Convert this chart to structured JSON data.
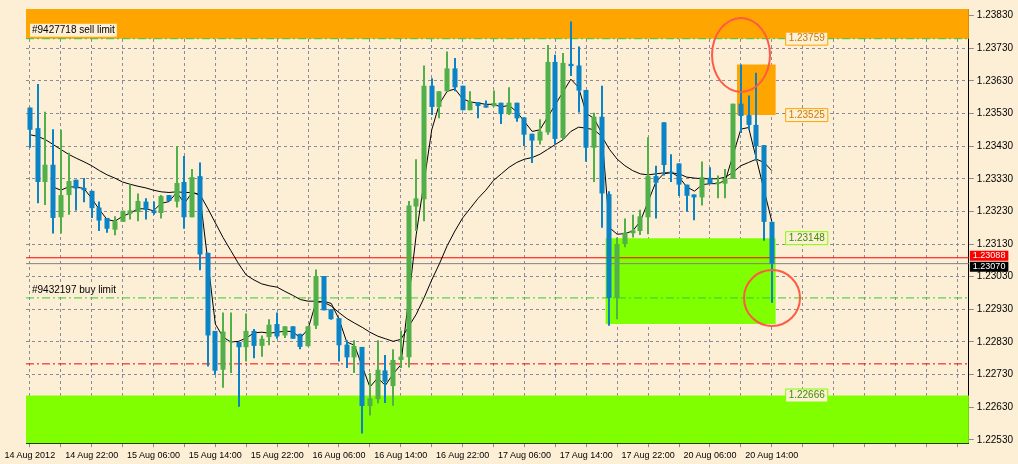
{
  "chart_data": {
    "type": "candlestick",
    "categories": [
      "14 Aug 2012",
      null,
      null,
      null,
      null,
      null,
      null,
      null,
      "14 Aug 22:00",
      null,
      null,
      null,
      null,
      null,
      null,
      null,
      "15 Aug 06:00",
      null,
      null,
      null,
      null,
      null,
      null,
      null,
      "15 Aug 14:00",
      null,
      null,
      null,
      null,
      null,
      null,
      null,
      "15 Aug 22:00",
      null,
      null,
      null,
      null,
      null,
      null,
      null,
      "16 Aug 06:00",
      null,
      null,
      null,
      null,
      null,
      null,
      null,
      "16 Aug 14:00",
      null,
      null,
      null,
      null,
      null,
      null,
      null,
      "16 Aug 22:00",
      null,
      null,
      null,
      null,
      null,
      null,
      null,
      "17 Aug 06:00",
      null,
      null,
      null,
      null,
      null,
      null,
      null,
      "17 Aug 14:00",
      null,
      null,
      null,
      null,
      null,
      null,
      null,
      "17 Aug 22:00",
      null,
      null,
      null,
      null,
      null,
      null,
      null,
      "20 Aug 06:00",
      null,
      null,
      null,
      null,
      null,
      null,
      null,
      "20 Aug 14:00",
      null,
      null,
      null,
      null,
      null,
      null,
      null,
      null,
      null,
      null,
      null,
      null,
      null,
      null,
      null,
      null,
      null,
      null,
      null,
      null,
      null,
      null,
      null,
      null,
      null
    ],
    "ohlc": [
      [
        1.23548,
        1.23548,
        1.23425,
        1.2348
      ],
      [
        1.23485,
        1.2362,
        1.23255,
        1.2332
      ],
      [
        1.2332,
        1.23535,
        1.2325,
        1.23373
      ],
      [
        1.23373,
        1.23482,
        1.23162,
        1.2321
      ],
      [
        1.23212,
        1.2348,
        1.23162,
        1.2328
      ],
      [
        1.2328,
        1.2341,
        1.2322,
        1.23323
      ],
      [
        1.23327,
        1.23327,
        1.23233,
        1.233
      ],
      [
        1.23302,
        1.23332,
        1.23258,
        1.23295
      ],
      [
        1.23293,
        1.23293,
        1.2321,
        1.2324
      ],
      [
        1.23242,
        1.2326,
        1.2317,
        1.23202
      ],
      [
        1.2321,
        1.2321,
        1.23165,
        1.23177
      ],
      [
        1.23174,
        1.23215,
        1.23157,
        1.232
      ],
      [
        1.23198,
        1.23232,
        1.23198,
        1.23232
      ],
      [
        1.23223,
        1.23312,
        1.23205,
        1.23233
      ],
      [
        1.23228,
        1.23285,
        1.232,
        1.23262
      ],
      [
        1.2326,
        1.2327,
        1.23205,
        1.23235
      ],
      [
        1.23233,
        1.2326,
        1.2322,
        1.23225
      ],
      [
        1.23225,
        1.2328,
        1.23208,
        1.23277
      ],
      [
        1.2328,
        1.2328,
        1.2326,
        1.23262
      ],
      [
        1.2326,
        1.2343,
        1.23242,
        1.23317
      ],
      [
        1.2332,
        1.234,
        1.23177,
        1.23212
      ],
      [
        1.23212,
        1.2336,
        1.23212,
        1.23335
      ],
      [
        1.23338,
        1.2338,
        1.2305,
        1.23098
      ],
      [
        1.23103,
        1.23103,
        1.22755,
        1.2285
      ],
      [
        1.22864,
        1.22864,
        1.2273,
        1.22742
      ],
      [
        1.22745,
        1.2292,
        1.2269,
        1.22862
      ],
      [
        1.2283,
        1.2292,
        1.22735,
        1.22832
      ],
      [
        1.2283,
        1.2283,
        1.22632,
        1.22814
      ],
      [
        1.22814,
        1.22917,
        1.2277,
        1.22864
      ],
      [
        1.22864,
        1.2287,
        1.2278,
        1.22818
      ],
      [
        1.22818,
        1.2285,
        1.22785,
        1.2284
      ],
      [
        1.22845,
        1.229,
        1.2282,
        1.22883
      ],
      [
        1.22885,
        1.2292,
        1.2284,
        1.22847
      ],
      [
        1.2285,
        1.22878,
        1.22842,
        1.22878
      ],
      [
        1.22878,
        1.22878,
        1.2284,
        1.2284
      ],
      [
        1.22855,
        1.22855,
        1.22808,
        1.22815
      ],
      [
        1.22817,
        1.22878,
        1.22817,
        1.22878
      ],
      [
        1.2288,
        1.23052,
        1.2287,
        1.23032
      ],
      [
        1.23032,
        1.23032,
        1.22927,
        1.22927
      ],
      [
        1.2293,
        1.2293,
        1.22898,
        1.229
      ],
      [
        1.22903,
        1.22903,
        1.2277,
        1.2282
      ],
      [
        1.22822,
        1.22835,
        1.2275,
        1.22783
      ],
      [
        1.22783,
        1.22835,
        1.22735,
        1.22818
      ],
      [
        1.22815,
        1.22815,
        1.2255,
        1.22634
      ],
      [
        1.22634,
        1.22735,
        1.22605,
        1.22657
      ],
      [
        1.22655,
        1.22835,
        1.22642,
        1.22745
      ],
      [
        1.22743,
        1.2279,
        1.22643,
        1.22708
      ],
      [
        1.22695,
        1.22808,
        1.22635,
        1.22775
      ],
      [
        1.22775,
        1.22865,
        1.2275,
        1.22785
      ],
      [
        1.22783,
        1.23262,
        1.22752,
        1.23248
      ],
      [
        1.23245,
        1.2339,
        1.2317,
        1.2327
      ],
      [
        1.23267,
        1.23677,
        1.232,
        1.23615
      ],
      [
        1.23615,
        1.23638,
        1.23525,
        1.2355
      ],
      [
        1.2355,
        1.23598,
        1.23515,
        1.23598
      ],
      [
        1.23598,
        1.2372,
        1.23598,
        1.23668
      ],
      [
        1.23668,
        1.237,
        1.23598,
        1.2361
      ],
      [
        1.23615,
        1.23615,
        1.2354,
        1.2354
      ],
      [
        1.2354,
        1.23598,
        1.2354,
        1.23567
      ],
      [
        1.23565,
        1.23565,
        1.23515,
        1.23553
      ],
      [
        1.23555,
        1.2357,
        1.23548,
        1.23548
      ],
      [
        1.23552,
        1.236,
        1.23552,
        1.23562
      ],
      [
        1.23563,
        1.23563,
        1.23498,
        1.23528
      ],
      [
        1.23528,
        1.2361,
        1.23525,
        1.23563
      ],
      [
        1.23563,
        1.23563,
        1.23505,
        1.23515
      ],
      [
        1.23518,
        1.23518,
        1.2343,
        1.23465
      ],
      [
        1.23468,
        1.23468,
        1.23378,
        1.23447
      ],
      [
        1.23447,
        1.23512,
        1.23435,
        1.23475
      ],
      [
        1.23472,
        1.2374,
        1.23465,
        1.23688
      ],
      [
        1.23688,
        1.2371,
        1.23435,
        1.23452
      ],
      [
        1.23455,
        1.23715,
        1.23452,
        1.23685
      ],
      [
        1.23682,
        1.23812,
        1.23645,
        1.23675
      ],
      [
        1.23677,
        1.23735,
        1.23533,
        1.236
      ],
      [
        1.23602,
        1.23602,
        1.23382,
        1.23425
      ],
      [
        1.23425,
        1.23532,
        1.2332,
        1.2352
      ],
      [
        1.2352,
        1.23615,
        1.2318,
        1.23285
      ],
      [
        1.23283,
        1.23292,
        1.2288,
        1.22965
      ],
      [
        1.22965,
        1.2315,
        1.229,
        1.2313
      ],
      [
        1.2313,
        1.23208,
        1.2312,
        1.23165
      ],
      [
        1.23163,
        1.2322,
        1.2315,
        1.23172
      ],
      [
        1.2317,
        1.23235,
        1.23158,
        1.23215
      ],
      [
        1.23212,
        1.23457,
        1.2316,
        1.23338
      ],
      [
        1.23338,
        1.2337,
        1.23208,
        1.23318
      ],
      [
        1.23503,
        1.23503,
        1.2334,
        1.23372
      ],
      [
        1.23352,
        1.23405,
        1.2332,
        1.23347
      ],
      [
        1.23377,
        1.23377,
        1.23277,
        1.23312
      ],
      [
        1.23312,
        1.23312,
        1.2323,
        1.23278
      ],
      [
        1.23282,
        1.23282,
        1.23203,
        1.23273
      ],
      [
        1.23273,
        1.23383,
        1.23248,
        1.23335
      ],
      [
        1.23333,
        1.23365,
        1.23315,
        1.23315
      ],
      [
        1.23314,
        1.2334,
        1.2327,
        1.2332
      ],
      [
        1.23315,
        1.2336,
        1.2327,
        1.23332
      ],
      [
        1.2333,
        1.2356,
        1.2333,
        1.2356
      ],
      [
        1.2356,
        1.2368,
        1.2347,
        1.23522
      ],
      [
        1.23525,
        1.23585,
        1.2348,
        1.23495
      ],
      [
        1.23495,
        1.23655,
        1.23385,
        1.2343
      ],
      [
        1.23433,
        1.23433,
        1.2314,
        1.23198
      ],
      [
        1.23198,
        1.23198,
        1.2295,
        1.2307
      ],
      null,
      null,
      null,
      null,
      null,
      null,
      null,
      null,
      null,
      null,
      null,
      null,
      null,
      null,
      null,
      null,
      null,
      null,
      null,
      null,
      null,
      null,
      null,
      null,
      null
    ],
    "colors": [
      "#0a84c6",
      "#0a84c6",
      "#52b04a",
      "#0a84c6",
      "#52b04a",
      "#52b04a",
      "#0a84c6",
      "#0a84c6",
      "#0a84c6",
      "#0a84c6",
      "#0a84c6",
      "#52b04a",
      "#52b04a",
      "#52b04a",
      "#52b04a",
      "#0a84c6",
      "#0a84c6",
      "#52b04a",
      "#0a84c6",
      "#52b04a",
      "#0a84c6",
      "#52b04a",
      "#0a84c6",
      "#0a84c6",
      "#0a84c6",
      "#52b04a",
      "#52b04a",
      "#0a84c6",
      "#52b04a",
      "#0a84c6",
      "#52b04a",
      "#52b04a",
      "#0a84c6",
      "#52b04a",
      "#0a84c6",
      "#0a84c6",
      "#52b04a",
      "#52b04a",
      "#0a84c6",
      "#0a84c6",
      "#0a84c6",
      "#0a84c6",
      "#52b04a",
      "#0a84c6",
      "#52b04a",
      "#52b04a",
      "#0a84c6",
      "#52b04a",
      "#52b04a",
      "#52b04a",
      "#52b04a",
      "#52b04a",
      "#0a84c6",
      "#52b04a",
      "#52b04a",
      "#0a84c6",
      "#0a84c6",
      "#52b04a",
      "#0a84c6",
      "#0a84c6",
      "#52b04a",
      "#0a84c6",
      "#52b04a",
      "#0a84c6",
      "#0a84c6",
      "#0a84c6",
      "#52b04a",
      "#52b04a",
      "#0a84c6",
      "#52b04a",
      "#0a84c6",
      "#0a84c6",
      "#0a84c6",
      "#52b04a",
      "#0a84c6",
      "#0a84c6",
      "#52b04a",
      "#52b04a",
      "#52b04a",
      "#52b04a",
      "#52b04a",
      "#0a84c6",
      "#0a84c6",
      "#0a84c6",
      "#0a84c6",
      "#0a84c6",
      "#0a84c6",
      "#52b04a",
      "#0a84c6",
      "#52b04a",
      "#52b04a",
      "#52b04a",
      "#0a84c6",
      "#0a84c6",
      "#0a84c6",
      "#0a84c6",
      "#0a84c6",
      null,
      null,
      null,
      null,
      null,
      null,
      null,
      null,
      null,
      null,
      null,
      null,
      null,
      null,
      null,
      null,
      null,
      null,
      null,
      null,
      null,
      null,
      null,
      null,
      null
    ],
    "series": [
      {
        "type": "line",
        "color": "#000000",
        "values": [
          null,
          null,
          null,
          1.23305,
          1.23295,
          1.23305,
          1.23305,
          1.233,
          1.2327,
          1.23235,
          1.23205,
          1.232,
          1.23215,
          1.23225,
          1.23238,
          1.23238,
          1.23232,
          1.23255,
          1.2326,
          1.23288,
          1.23255,
          1.23288,
          1.2328,
          null,
          1.22885,
          1.22845,
          1.2283,
          1.22832,
          1.22842,
          1.22858,
          1.2286,
          1.22857,
          1.2286,
          1.22863,
          1.22862,
          1.22842,
          1.2287,
          1.2295,
          1.22955,
          1.22948,
          1.229,
          1.2283,
          1.2282,
          null,
          1.22692,
          1.2272,
          1.22697,
          1.22732,
          1.2276,
          null,
          1.2316,
          null,
          1.2348,
          1.2356,
          1.23598,
          1.23605,
          1.23575,
          1.23565,
          1.23562,
          1.23558,
          1.23558,
          1.2355,
          1.23555,
          1.23535,
          1.23505,
          1.23475,
          1.2348,
          null,
          null,
          null,
          1.23635,
          1.2361,
          1.2353,
          1.23515,
          1.2347,
          1.2318,
          1.2316,
          1.23162,
          1.2317,
          1.232,
          null,
          1.2332,
          1.23345,
          1.2335,
          1.23335,
          1.23305,
          1.23292,
          1.23312,
          1.23315,
          1.23315,
          1.23325,
          null,
          1.23482,
          1.23487,
          null,
          null,
          1.232,
          null,
          null,
          null,
          null,
          null,
          null,
          null,
          null,
          null,
          null,
          null,
          null,
          null,
          null,
          null,
          null,
          null,
          null,
          null,
          null,
          null,
          null,
          null,
          null,
          null
        ]
      },
      {
        "type": "line",
        "color": "#000000",
        "values": [
          1.23465,
          1.2346,
          1.2345,
          1.23435,
          1.2342,
          1.23405,
          1.23393,
          1.23382,
          1.2337,
          1.23355,
          1.23342,
          1.23332,
          1.2332,
          1.23313,
          1.23307,
          1.23302,
          1.23295,
          1.2329,
          1.23288,
          1.2329,
          1.23288,
          1.23288,
          1.23282,
          1.2324,
          1.23195,
          1.2315,
          1.2311,
          1.2307,
          1.23035,
          1.2302,
          1.23008,
          1.23002,
          1.22998,
          1.22985,
          1.22973,
          1.2296,
          1.22955,
          1.22955,
          1.22952,
          1.2294,
          1.2292,
          1.22902,
          1.22888,
          1.22875,
          1.2286,
          1.22848,
          1.2284,
          1.22832,
          1.22838,
          null,
          1.22915,
          1.22965,
          1.2302,
          1.2307,
          1.23125,
          1.2317,
          1.2321,
          1.2324,
          1.2327,
          1.23295,
          1.23325,
          1.23345,
          1.23365,
          1.2338,
          1.2339,
          1.23395,
          1.23405,
          1.2342,
          1.23435,
          1.2345,
          1.23475,
          1.23488,
          1.23485,
          1.2348,
          1.2346,
          1.2342,
          1.2339,
          1.2337,
          1.23355,
          1.23345,
          1.23342,
          1.23345,
          1.23348,
          1.23348,
          1.23345,
          1.23335,
          1.23332,
          1.2333,
          1.2333,
          1.2333,
          1.23335,
          1.2335,
          1.2337,
          1.2338,
          1.2339,
          1.2338,
          1.23355,
          null,
          null,
          null,
          null,
          null,
          null,
          null,
          null,
          null,
          null,
          null,
          null,
          null,
          null,
          null,
          null,
          null,
          null,
          null,
          null,
          null,
          null,
          null,
          null,
          null
        ]
      }
    ],
    "ylim": [
      1.2252,
      1.2385
    ],
    "yticks": [
      {
        "value": 1.2253,
        "label": "1.22530"
      },
      {
        "value": 1.2263,
        "label": "1.22630"
      },
      {
        "value": 1.2273,
        "label": "1.22730"
      },
      {
        "value": 1.2283,
        "label": "1.22830"
      },
      {
        "value": 1.2293,
        "label": "1.22930"
      },
      {
        "value": 1.2303,
        "label": "1.23030"
      },
      {
        "value": 1.2313,
        "label": "1.23130"
      },
      {
        "value": 1.2323,
        "label": "1.23230"
      },
      {
        "value": 1.2333,
        "label": "1.23330"
      },
      {
        "value": 1.2343,
        "label": "1.23430"
      },
      {
        "value": 1.2353,
        "label": "1.23530"
      },
      {
        "value": 1.2363,
        "label": "1.23630"
      },
      {
        "value": 1.2373,
        "label": "1.23730"
      },
      {
        "value": 1.2383,
        "label": "1.23830"
      }
    ],
    "grid": true,
    "bands": [
      {
        "axis": "y",
        "from": 1.23759,
        "to": 1.2385,
        "label": "1.23759",
        "color": "#ffa500"
      },
      {
        "axis": "y",
        "from": 1.23525,
        "to": 1.2368,
        "label": "1.23525",
        "color": "#ffa500"
      },
      {
        "axis": "y",
        "from": 1.23148,
        "to": 1.22885,
        "label": "1.23148",
        "color": "#7fff00"
      },
      {
        "axis": "y",
        "from": 1.22666,
        "to": 1.2252,
        "label": "1.22666",
        "color": "#7fff00"
      }
    ],
    "ref_lines": [
      {
        "axis": "y",
        "value": 1.23759,
        "label": "#9427718 sell limit",
        "color": "#32cd32",
        "line_style": "dashed"
      },
      {
        "axis": "y",
        "value": 1.22965,
        "label": "#9432197 buy limit",
        "color": "#32cd32",
        "line_style": "dashed"
      },
      {
        "axis": "y",
        "value": 1.22763,
        "color": "#ff0000",
        "line_style": "dashed"
      },
      {
        "axis": "y",
        "value": 1.23088,
        "label": "1.23088",
        "color": "#ff0000",
        "line_style": "solid"
      },
      {
        "axis": "y",
        "value": 1.2307,
        "label": "1.23070",
        "color": "#808080",
        "line_style": "solid"
      }
    ]
  }
}
